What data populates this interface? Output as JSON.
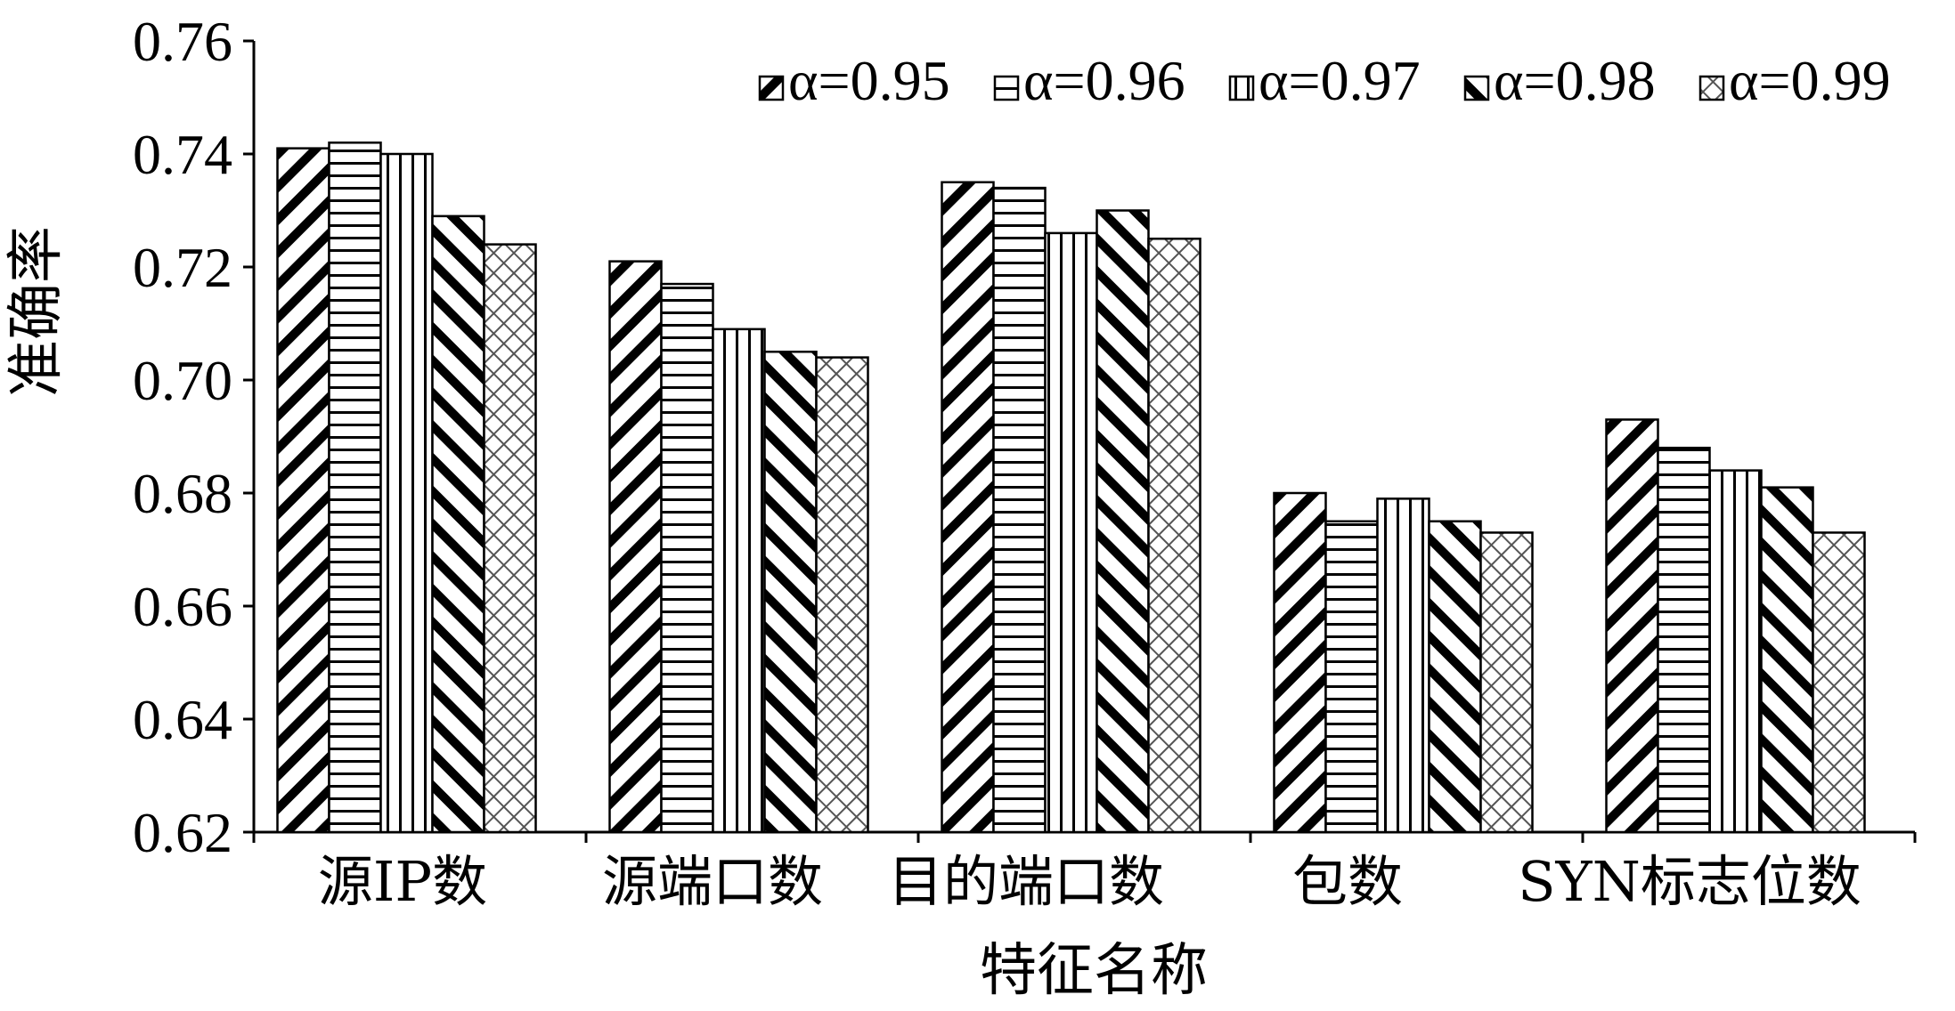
{
  "chart_data": {
    "type": "bar",
    "xlabel": "特征名称",
    "ylabel": "准确率",
    "ylim": [
      0.62,
      0.76
    ],
    "yticks": [
      "0.62",
      "0.64",
      "0.66",
      "0.68",
      "0.70",
      "0.72",
      "0.74",
      "0.76"
    ],
    "categories": [
      "源IP数",
      "源端口数",
      "目的端口数",
      "包数",
      "SYN标志位数"
    ],
    "legend_position": "top-right",
    "series": [
      {
        "name": "α=0.95",
        "pattern": "backslash-hatch",
        "values": [
          0.741,
          0.721,
          0.735,
          0.68,
          0.693
        ]
      },
      {
        "name": "α=0.96",
        "pattern": "horizontal-lines",
        "values": [
          0.742,
          0.717,
          0.734,
          0.675,
          0.688
        ]
      },
      {
        "name": "α=0.97",
        "pattern": "vertical-lines",
        "values": [
          0.74,
          0.709,
          0.726,
          0.679,
          0.684
        ]
      },
      {
        "name": "α=0.98",
        "pattern": "slash-hatch",
        "values": [
          0.729,
          0.705,
          0.73,
          0.675,
          0.681
        ]
      },
      {
        "name": "α=0.99",
        "pattern": "crosshatch",
        "values": [
          0.724,
          0.704,
          0.725,
          0.673,
          0.673
        ]
      }
    ],
    "grid": false,
    "colors": {
      "stroke": "#000000",
      "background": "#ffffff"
    }
  }
}
